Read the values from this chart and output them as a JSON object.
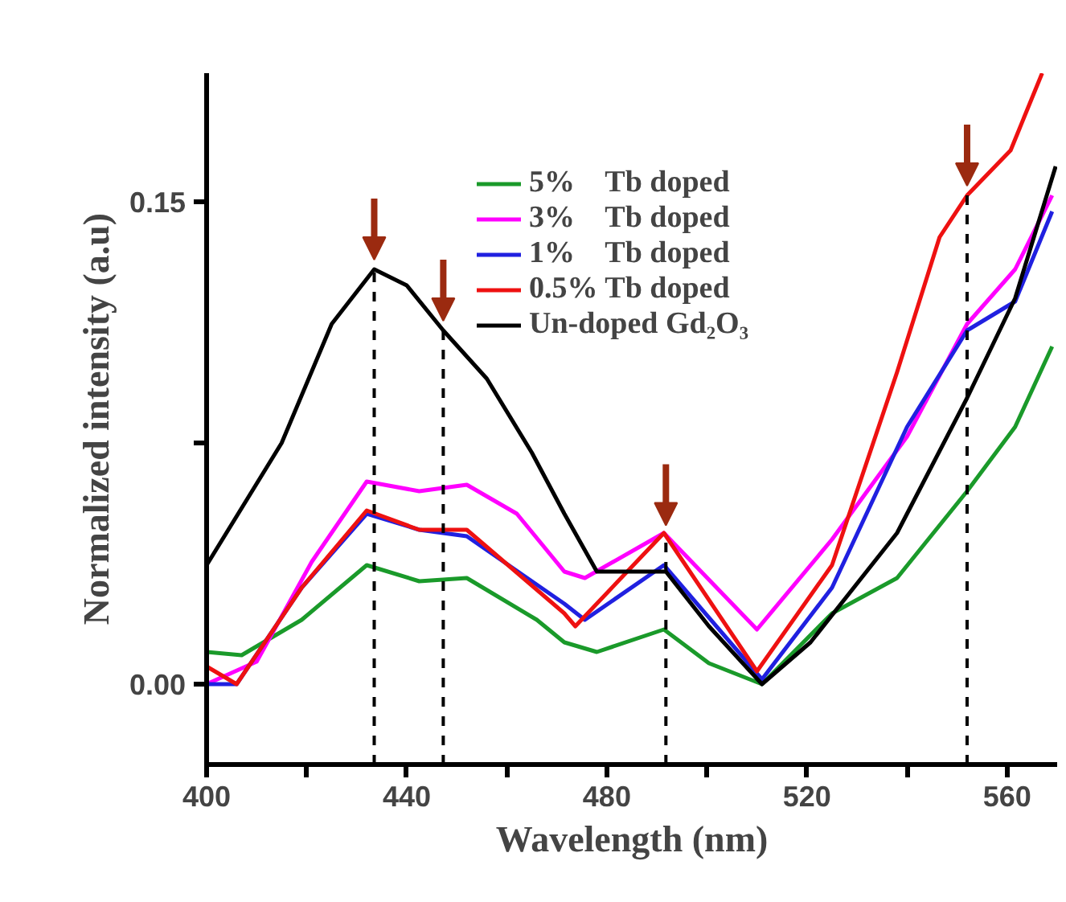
{
  "chart_data": {
    "type": "line",
    "xlabel": "Wavelength (nm)",
    "ylabel": "Normalized intensity (a.u)",
    "xlim": [
      400,
      570
    ],
    "ylim": [
      -0.025,
      0.19
    ],
    "xticks": [
      400,
      {
        "value": 420,
        "label": null
      },
      440,
      {
        "value": 460,
        "label": null
      },
      480,
      {
        "value": 500,
        "label": null
      },
      520,
      {
        "value": 540,
        "label": null
      },
      560
    ],
    "yticks": [
      {
        "value": 0,
        "label": "0.00"
      },
      {
        "value": 0.075,
        "label": null
      },
      {
        "value": 0.15,
        "label": "0.15"
      }
    ],
    "grid": false,
    "legend": "top right",
    "marker": "none",
    "line_style": "solid",
    "series": [
      {
        "name": "5%    Tb doped",
        "color": "#1a9a2a",
        "x": [
          400,
          407,
          419,
          432,
          442.5,
          452,
          466,
          471.5,
          478,
          491.4,
          500.4,
          511,
          525,
          538,
          552,
          561.6,
          569
        ],
        "values": [
          0.01,
          0.009,
          0.02,
          0.037,
          0.032,
          0.033,
          0.02,
          0.013,
          0.01,
          0.017,
          0.0065,
          0.0,
          0.022,
          0.033,
          0.06,
          0.08,
          0.105
        ]
      },
      {
        "name": "3%    Tb doped",
        "color": "#ff00ff",
        "x": [
          400,
          410,
          421,
          432,
          442.5,
          452,
          462,
          471.5,
          475.6,
          491.4,
          510,
          525,
          540,
          552,
          561.6,
          569
        ],
        "values": [
          0.0,
          0.007,
          0.038,
          0.063,
          0.06,
          0.062,
          0.053,
          0.035,
          0.033,
          0.047,
          0.017,
          0.045,
          0.077,
          0.112,
          0.129,
          0.152
        ]
      },
      {
        "name": "1%    Tb doped",
        "color": "#2020e0",
        "x": [
          400,
          406,
          419,
          432,
          442.5,
          452,
          471.5,
          475.6,
          491.4,
          511,
          525,
          540,
          552,
          561.6,
          569
        ],
        "values": [
          0.0,
          0.0,
          0.03,
          0.053,
          0.048,
          0.046,
          0.025,
          0.02,
          0.037,
          0.0015,
          0.03,
          0.08,
          0.11,
          0.119,
          0.147
        ]
      },
      {
        "name": "0.5% Tb doped",
        "color": "#ee1111",
        "x": [
          400,
          406,
          419,
          432,
          442.5,
          452,
          471.5,
          473.7,
          491.4,
          510,
          525,
          538,
          546.5,
          552,
          560.7,
          567
        ],
        "values": [
          0.0055,
          0.0,
          0.03,
          0.054,
          0.048,
          0.048,
          0.022,
          0.018,
          0.047,
          0.004,
          0.037,
          0.097,
          0.139,
          0.152,
          0.166,
          0.19
        ]
      },
      {
        "name": "Un-doped Gd₂O₃",
        "color": "#000000",
        "x": [
          400,
          415,
          425,
          433.5,
          440,
          447.3,
          456,
          465,
          471.5,
          478,
          491.8,
          500.4,
          511,
          520.7,
          538,
          552,
          561.6,
          569.7
        ],
        "values": [
          0.037,
          0.075,
          0.112,
          0.129,
          0.124,
          0.11,
          0.095,
          0.072,
          0.053,
          0.035,
          0.035,
          0.018,
          0.0,
          0.013,
          0.047,
          0.089,
          0.12,
          0.161
        ]
      }
    ],
    "ref_lines": [
      {
        "axis": "x",
        "value": 433.5,
        "color": "#000000",
        "line_style": "dashed"
      },
      {
        "axis": "x",
        "value": 447.3,
        "color": "#000000",
        "line_style": "dashed"
      },
      {
        "axis": "x",
        "value": 491.8,
        "color": "#000000",
        "line_style": "dashed"
      },
      {
        "axis": "x",
        "value": 552,
        "color": "#000000",
        "line_style": "dashed"
      }
    ]
  }
}
